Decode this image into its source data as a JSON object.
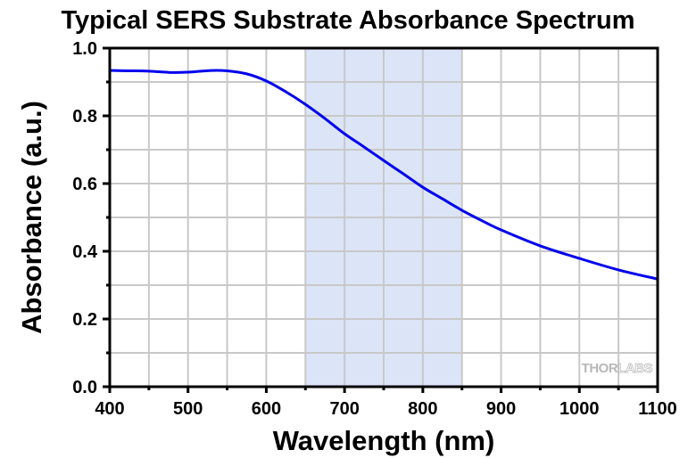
{
  "chart_data": {
    "type": "line",
    "title": "Typical SERS Substrate Absorbance Spectrum",
    "xlabel": "Wavelength (nm)",
    "ylabel": "Absorbance (a.u.)",
    "xlim": [
      400,
      1100
    ],
    "ylim": [
      0.0,
      1.0
    ],
    "x_ticks": [
      400,
      500,
      600,
      700,
      800,
      900,
      1000,
      1100
    ],
    "x_tick_labels": [
      "400",
      "500",
      "600",
      "700",
      "800",
      "900",
      "1000",
      "1100"
    ],
    "x_minor_step": 50,
    "y_ticks": [
      0.0,
      0.2,
      0.4,
      0.6,
      0.8,
      1.0
    ],
    "y_tick_labels": [
      "0.0",
      "0.2",
      "0.4",
      "0.6",
      "0.8",
      "1.0"
    ],
    "y_minor_step": 0.1,
    "grid": true,
    "shaded_region": {
      "x_start": 650,
      "x_end": 850,
      "color": "#dce5f7"
    },
    "series": [
      {
        "name": "Absorbance",
        "color": "#0000ee",
        "x": [
          400,
          425,
          450,
          480,
          500,
          530,
          550,
          575,
          600,
          625,
          650,
          675,
          700,
          725,
          750,
          775,
          800,
          825,
          850,
          875,
          900,
          950,
          1000,
          1050,
          1100
        ],
        "y": [
          0.934,
          0.933,
          0.932,
          0.928,
          0.929,
          0.934,
          0.933,
          0.924,
          0.903,
          0.871,
          0.834,
          0.792,
          0.747,
          0.708,
          0.668,
          0.629,
          0.589,
          0.555,
          0.521,
          0.491,
          0.463,
          0.416,
          0.379,
          0.345,
          0.318
        ]
      }
    ],
    "legend": "none",
    "watermark": {
      "prefix": "THOR",
      "suffix": "LABS"
    }
  }
}
